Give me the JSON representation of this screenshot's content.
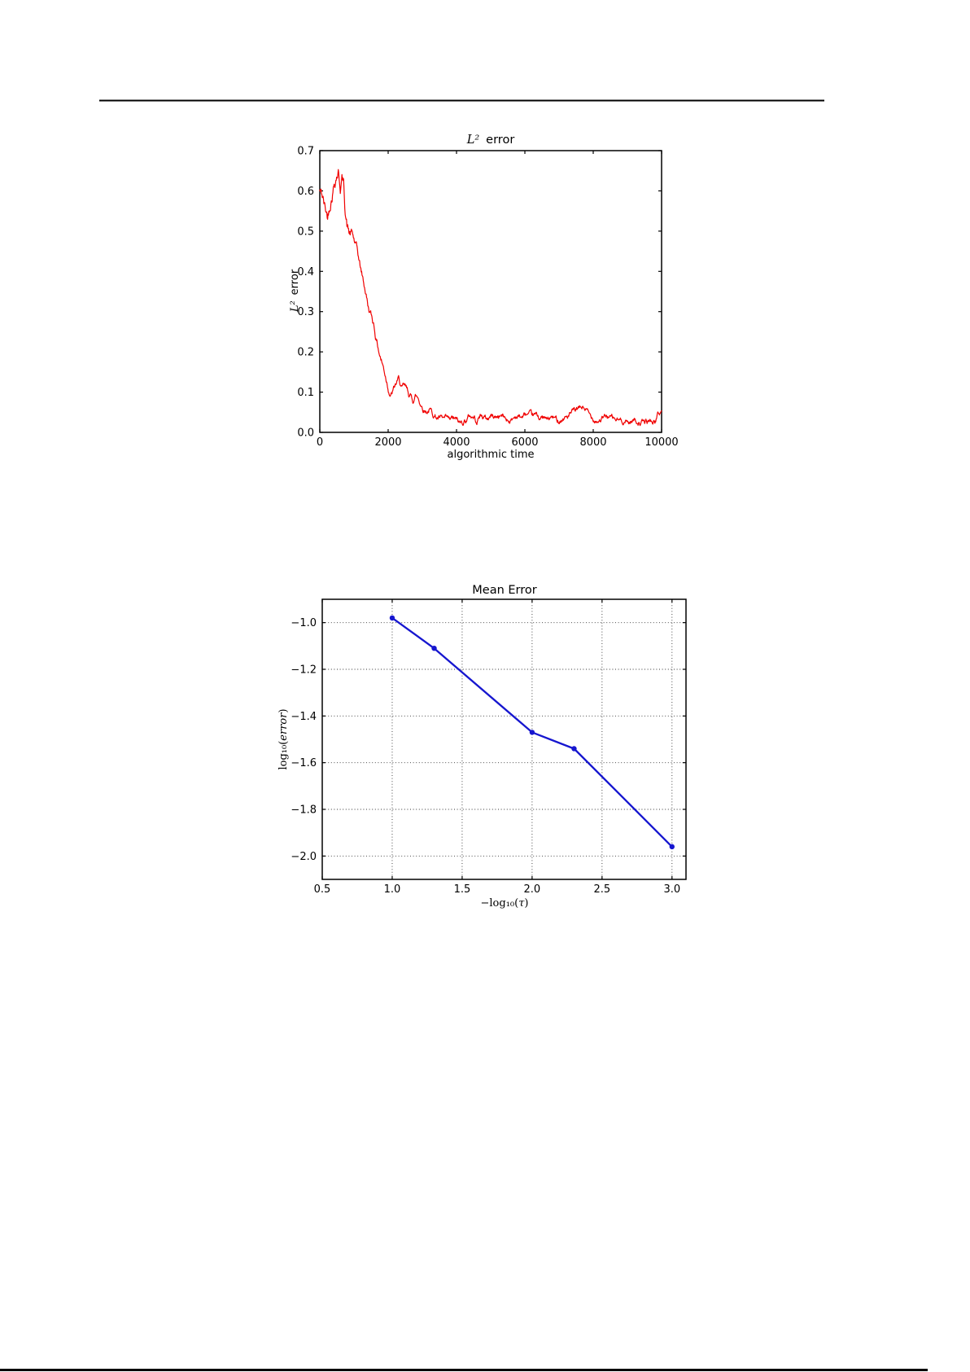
{
  "chart_data": [
    {
      "type": "line",
      "title_math": "L²",
      "title_text": "error",
      "xlabel": "algorithmic time",
      "ylabel_math": "L²",
      "ylabel_text": "error",
      "xlim": [
        0,
        10000
      ],
      "ylim": [
        0.0,
        0.7
      ],
      "xticks": {
        "values": [
          0,
          2000,
          4000,
          6000,
          8000,
          10000
        ],
        "labels": [
          "0",
          "2000",
          "4000",
          "6000",
          "8000",
          "10000"
        ]
      },
      "yticks": {
        "values": [
          0.0,
          0.1,
          0.2,
          0.3,
          0.4,
          0.5,
          0.6,
          0.7
        ],
        "labels": [
          "0.0",
          "0.1",
          "0.2",
          "0.3",
          "0.4",
          "0.5",
          "0.6",
          "0.7"
        ]
      },
      "grid": false,
      "legend": "none",
      "line_color": "#f00000",
      "line_width": 1.2,
      "description": "noisy stochastic error trajectory: starts near 0.6, oscillates up to 0.65, decays steeply between t=800 and t=2000, then fluctuates around 0.02-0.06 with a bump near t=7700",
      "envelope": [
        [
          0,
          0.6
        ],
        [
          80,
          0.585
        ],
        [
          150,
          0.555
        ],
        [
          230,
          0.535
        ],
        [
          300,
          0.575
        ],
        [
          360,
          0.6
        ],
        [
          420,
          0.625
        ],
        [
          480,
          0.645
        ],
        [
          540,
          0.655
        ],
        [
          600,
          0.615
        ],
        [
          650,
          0.635
        ],
        [
          700,
          0.615
        ],
        [
          740,
          0.56
        ],
        [
          800,
          0.515
        ],
        [
          860,
          0.495
        ],
        [
          950,
          0.49
        ],
        [
          1020,
          0.47
        ],
        [
          1100,
          0.445
        ],
        [
          1180,
          0.41
        ],
        [
          1260,
          0.38
        ],
        [
          1340,
          0.35
        ],
        [
          1420,
          0.31
        ],
        [
          1500,
          0.29
        ],
        [
          1580,
          0.27
        ],
        [
          1660,
          0.23
        ],
        [
          1740,
          0.2
        ],
        [
          1820,
          0.175
        ],
        [
          1900,
          0.15
        ],
        [
          1960,
          0.13
        ],
        [
          2020,
          0.11
        ],
        [
          2080,
          0.095
        ],
        [
          2160,
          0.105
        ],
        [
          2240,
          0.12
        ],
        [
          2320,
          0.13
        ],
        [
          2400,
          0.105
        ],
        [
          2480,
          0.11
        ],
        [
          2560,
          0.1
        ],
        [
          2640,
          0.09
        ],
        [
          2720,
          0.08
        ],
        [
          2800,
          0.092
        ],
        [
          2880,
          0.085
        ],
        [
          2960,
          0.07
        ],
        [
          3040,
          0.06
        ],
        [
          3120,
          0.055
        ],
        [
          3200,
          0.058
        ],
        [
          3300,
          0.048
        ],
        [
          3400,
          0.04
        ],
        [
          3500,
          0.035
        ],
        [
          3600,
          0.03
        ],
        [
          3700,
          0.03
        ],
        [
          3800,
          0.026
        ],
        [
          3900,
          0.032
        ],
        [
          4000,
          0.028
        ],
        [
          4100,
          0.02
        ],
        [
          4200,
          0.028
        ],
        [
          4300,
          0.034
        ],
        [
          4400,
          0.042
        ],
        [
          4500,
          0.038
        ],
        [
          4600,
          0.03
        ],
        [
          4700,
          0.044
        ],
        [
          4800,
          0.038
        ],
        [
          4900,
          0.033
        ],
        [
          5000,
          0.042
        ],
        [
          5150,
          0.038
        ],
        [
          5300,
          0.044
        ],
        [
          5450,
          0.034
        ],
        [
          5600,
          0.03
        ],
        [
          5750,
          0.042
        ],
        [
          5900,
          0.038
        ],
        [
          6050,
          0.044
        ],
        [
          6200,
          0.036
        ],
        [
          6350,
          0.04
        ],
        [
          6500,
          0.036
        ],
        [
          6650,
          0.03
        ],
        [
          6800,
          0.036
        ],
        [
          6950,
          0.03
        ],
        [
          7100,
          0.035
        ],
        [
          7250,
          0.04
        ],
        [
          7400,
          0.048
        ],
        [
          7550,
          0.055
        ],
        [
          7700,
          0.062
        ],
        [
          7800,
          0.055
        ],
        [
          7900,
          0.04
        ],
        [
          8000,
          0.036
        ],
        [
          8150,
          0.032
        ],
        [
          8300,
          0.036
        ],
        [
          8450,
          0.04
        ],
        [
          8600,
          0.032
        ],
        [
          8750,
          0.028
        ],
        [
          8900,
          0.03
        ],
        [
          9050,
          0.026
        ],
        [
          9200,
          0.032
        ],
        [
          9350,
          0.026
        ],
        [
          9500,
          0.023
        ],
        [
          9650,
          0.028
        ],
        [
          9800,
          0.026
        ],
        [
          9900,
          0.045
        ],
        [
          10000,
          0.052
        ]
      ],
      "noise": {
        "seed": 42,
        "step": 12,
        "decay": 0.86,
        "amplitudes": [
          [
            0,
            0.011
          ],
          [
            750,
            0.011
          ],
          [
            1100,
            0.007
          ],
          [
            2000,
            0.0062
          ],
          [
            3200,
            0.005
          ],
          [
            10000,
            0.0046
          ]
        ]
      }
    },
    {
      "type": "line",
      "title": "Mean Error",
      "xlabel_pre": "−log₁₀(",
      "xlabel_var": "τ",
      "xlabel_post": ")",
      "ylabel_pre": "log₁₀(",
      "ylabel_var": "error",
      "ylabel_post": ")",
      "xlim": [
        0.5,
        3.1
      ],
      "ylim": [
        -2.1,
        -0.9
      ],
      "xticks": {
        "values": [
          0.5,
          1.0,
          1.5,
          2.0,
          2.5,
          3.0
        ],
        "labels": [
          "0.5",
          "1.0",
          "1.5",
          "2.0",
          "2.5",
          "3.0"
        ]
      },
      "yticks": {
        "values": [
          -1.0,
          -1.2,
          -1.4,
          -1.6,
          -1.8,
          -2.0
        ],
        "labels": [
          "−1.0",
          "−1.2",
          "−1.4",
          "−1.6",
          "−1.8",
          "−2.0"
        ]
      },
      "grid": true,
      "legend": "none",
      "line_color": "#1616cf",
      "line_width": 2.3,
      "marker": "circle",
      "x": [
        1.0,
        1.3,
        2.0,
        2.3,
        3.0
      ],
      "y": [
        -0.98,
        -1.11,
        -1.47,
        -1.54,
        -1.96
      ]
    }
  ]
}
